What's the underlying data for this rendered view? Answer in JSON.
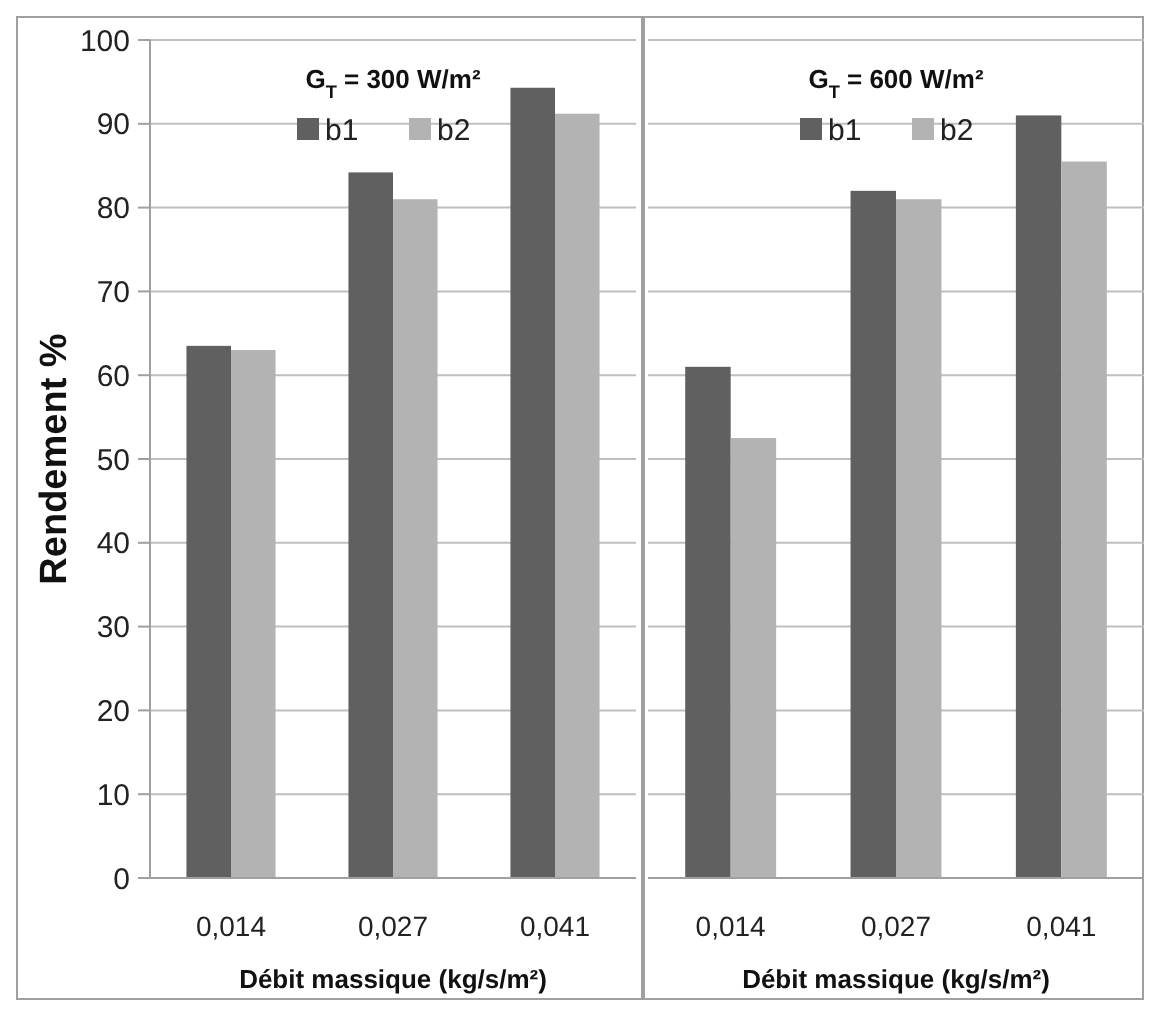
{
  "chart_data": [
    {
      "type": "bar",
      "title": "G$_{T}$ = 300 W/m²",
      "xlabel": "Débit massique (kg/s/m²)",
      "ylabel": "Rendement %",
      "categories": [
        "0,014",
        "0,027",
        "0,041"
      ],
      "series": [
        {
          "name": "b1",
          "color": "#606060",
          "values": [
            63.5,
            84.2,
            94.3
          ]
        },
        {
          "name": "b2",
          "color": "#b3b3b3",
          "values": [
            63,
            81,
            91.2
          ]
        }
      ],
      "ylim": [
        0,
        100
      ],
      "yticks": [
        0,
        10,
        20,
        30,
        40,
        50,
        60,
        70,
        80,
        90,
        100
      ],
      "grid": "y",
      "legend": "top"
    },
    {
      "type": "bar",
      "title": "G$_{T}$ = 600 W/m²",
      "xlabel": "Débit massique (kg/s/m²)",
      "categories": [
        "0,014",
        "0,027",
        "0,041"
      ],
      "series": [
        {
          "name": "b1",
          "color": "#606060",
          "values": [
            61,
            82,
            91
          ]
        },
        {
          "name": "b2",
          "color": "#b3b3b3",
          "values": [
            52.5,
            81,
            85.5
          ]
        }
      ],
      "ylim": [
        0,
        100
      ],
      "yticks": [
        0,
        10,
        20,
        30,
        40,
        50,
        60,
        70,
        80,
        90,
        100
      ],
      "grid": "y",
      "legend": "top",
      "tick_labels": "x"
    }
  ]
}
